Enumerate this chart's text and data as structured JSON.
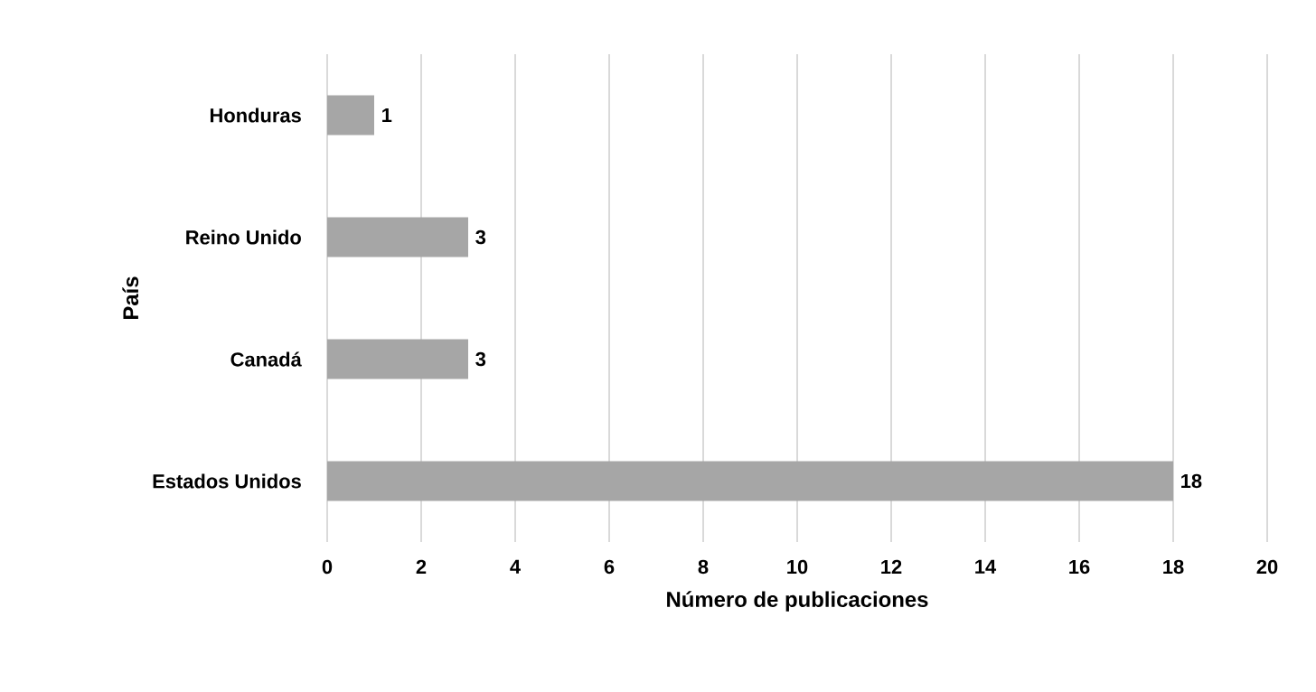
{
  "chart_data": {
    "type": "bar",
    "orientation": "horizontal",
    "categories": [
      "Honduras",
      "Reino Unido",
      "Canadá",
      "Estados Unidos"
    ],
    "values": [
      1,
      3,
      3,
      18
    ],
    "color": "#a6a6a6",
    "xlim": [
      0,
      20
    ],
    "xticks": [
      0,
      2,
      4,
      6,
      8,
      10,
      12,
      14,
      16,
      18,
      20
    ],
    "xlabel": "Número de publicaciones",
    "ylabel": "País",
    "grid": "x",
    "data_labels": true
  }
}
